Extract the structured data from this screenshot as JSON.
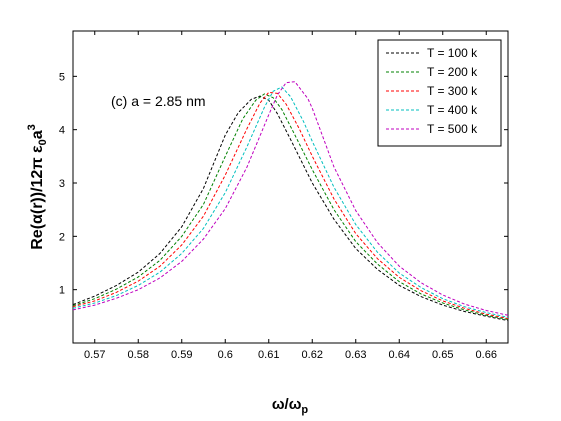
{
  "chart_data": {
    "type": "line",
    "xlabel": "ω/ω",
    "xlabel_sub": "p",
    "ylabel": "Re(α(r))/12π ε",
    "ylabel_sub": "0",
    "ylabel_tail": "a",
    "ylabel_sup": "3",
    "xlim": [
      0.565,
      0.665
    ],
    "ylim": [
      0,
      5.85
    ],
    "xticks": [
      0.57,
      0.58,
      0.59,
      0.6,
      0.61,
      0.62,
      0.63,
      0.64,
      0.65,
      0.66
    ],
    "yticks": [
      1,
      2,
      3,
      4,
      5
    ],
    "grid": false,
    "legend_position": "top-right",
    "annotation": "(c) a = 2.85 nm",
    "series": [
      {
        "name": "T = 100 k",
        "color": "#000000",
        "x": [
          0.565,
          0.57,
          0.575,
          0.58,
          0.585,
          0.59,
          0.595,
          0.6,
          0.603,
          0.606,
          0.608,
          0.61,
          0.612,
          0.615,
          0.62,
          0.625,
          0.63,
          0.635,
          0.64,
          0.645,
          0.65,
          0.655,
          0.66,
          0.665
        ],
        "y": [
          0.72,
          0.88,
          1.08,
          1.33,
          1.68,
          2.18,
          2.9,
          3.9,
          4.32,
          4.57,
          4.63,
          4.55,
          4.3,
          3.82,
          3.0,
          2.32,
          1.77,
          1.38,
          1.08,
          0.87,
          0.71,
          0.59,
          0.5,
          0.42
        ]
      },
      {
        "name": "T = 200 k",
        "color": "#008000",
        "x": [
          0.565,
          0.57,
          0.575,
          0.58,
          0.585,
          0.59,
          0.595,
          0.6,
          0.604,
          0.607,
          0.609,
          0.611,
          0.613,
          0.616,
          0.62,
          0.625,
          0.63,
          0.635,
          0.64,
          0.645,
          0.65,
          0.655,
          0.66,
          0.665
        ],
        "y": [
          0.7,
          0.83,
          1.01,
          1.24,
          1.55,
          2.0,
          2.6,
          3.5,
          4.2,
          4.55,
          4.67,
          4.6,
          4.38,
          3.9,
          3.25,
          2.5,
          1.9,
          1.48,
          1.15,
          0.92,
          0.75,
          0.62,
          0.52,
          0.44
        ]
      },
      {
        "name": "T = 300 k",
        "color": "#ff0000",
        "x": [
          0.565,
          0.57,
          0.575,
          0.58,
          0.585,
          0.59,
          0.595,
          0.6,
          0.605,
          0.608,
          0.61,
          0.612,
          0.614,
          0.617,
          0.62,
          0.625,
          0.63,
          0.635,
          0.64,
          0.645,
          0.65,
          0.655,
          0.66,
          0.665
        ],
        "y": [
          0.68,
          0.79,
          0.95,
          1.16,
          1.44,
          1.84,
          2.38,
          3.15,
          4.02,
          4.5,
          4.7,
          4.68,
          4.48,
          4.02,
          3.5,
          2.7,
          2.05,
          1.58,
          1.23,
          0.98,
          0.79,
          0.65,
          0.54,
          0.46
        ]
      },
      {
        "name": "T = 400 k",
        "color": "#00bfbf",
        "x": [
          0.565,
          0.57,
          0.575,
          0.58,
          0.585,
          0.59,
          0.595,
          0.6,
          0.605,
          0.609,
          0.611,
          0.613,
          0.615,
          0.618,
          0.62,
          0.625,
          0.63,
          0.635,
          0.64,
          0.645,
          0.65,
          0.655,
          0.66,
          0.665
        ],
        "y": [
          0.65,
          0.75,
          0.89,
          1.08,
          1.33,
          1.68,
          2.15,
          2.82,
          3.68,
          4.42,
          4.72,
          4.8,
          4.62,
          4.15,
          3.78,
          2.92,
          2.22,
          1.7,
          1.31,
          1.04,
          0.83,
          0.68,
          0.57,
          0.48
        ]
      },
      {
        "name": "T = 500 k",
        "color": "#bf00bf",
        "x": [
          0.565,
          0.57,
          0.575,
          0.58,
          0.585,
          0.59,
          0.595,
          0.6,
          0.605,
          0.61,
          0.612,
          0.614,
          0.616,
          0.619,
          0.62,
          0.625,
          0.63,
          0.635,
          0.64,
          0.645,
          0.65,
          0.655,
          0.66,
          0.665
        ],
        "y": [
          0.62,
          0.71,
          0.84,
          1.0,
          1.22,
          1.53,
          1.95,
          2.52,
          3.3,
          4.28,
          4.65,
          4.88,
          4.9,
          4.58,
          4.4,
          3.3,
          2.48,
          1.88,
          1.44,
          1.13,
          0.9,
          0.73,
          0.61,
          0.52
        ]
      }
    ]
  }
}
